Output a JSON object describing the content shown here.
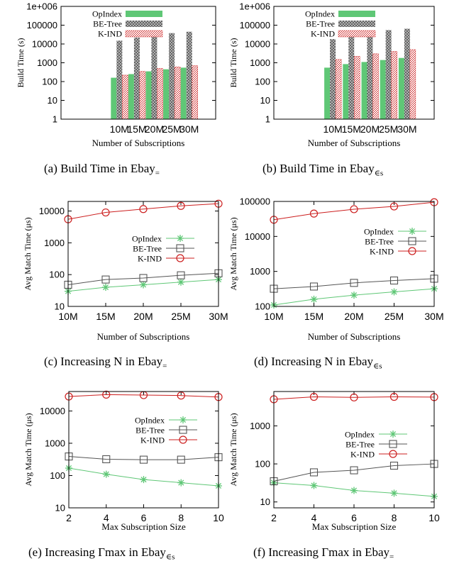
{
  "captions": [
    {
      "text": "(a) Build Time in Ebay",
      "sub": "="
    },
    {
      "text": "(b) Build Time in Ebay",
      "sub": "∈s"
    },
    {
      "text": "(c) Increasing N in Ebay",
      "sub": "="
    },
    {
      "text": "(d) Increasing N in Ebay",
      "sub": "∈s"
    },
    {
      "text": "(e) Increasing Γmax in Ebay",
      "sub": "∈s"
    },
    {
      "text": "(f) Increasing Γmax in Ebay",
      "sub": "="
    }
  ],
  "colors": {
    "opindex": "#5fc776",
    "betree": "#555555",
    "kind": "#cc1f1f",
    "kind_hatch": "#ffd6d6"
  },
  "chart_data": [
    {
      "type": "bar",
      "log": true,
      "categories": [
        "10M",
        "15M",
        "20M",
        "25M",
        "30M"
      ],
      "ylim": [
        1,
        1000000
      ],
      "yticks": [
        "1",
        "10",
        "100",
        "1000",
        "10000",
        "100000",
        "1e+006"
      ],
      "xlabel": "Number of Subscriptions",
      "ylabel": "Build Time (s)",
      "series": [
        {
          "name": "OpIndex",
          "values": [
            160,
            250,
            350,
            450,
            550
          ]
        },
        {
          "name": "BE-Tree",
          "values": [
            15000,
            22000,
            28000,
            38000,
            45000
          ]
        },
        {
          "name": "K-IND",
          "values": [
            220,
            350,
            500,
            600,
            700
          ]
        }
      ]
    },
    {
      "type": "bar",
      "log": true,
      "categories": [
        "10M",
        "15M",
        "20M",
        "25M",
        "30M"
      ],
      "ylim": [
        1,
        1000000
      ],
      "yticks": [
        "1",
        "10",
        "100",
        "1000",
        "10000",
        "100000",
        "1e+006"
      ],
      "xlabel": "Number of Subscriptions",
      "ylabel": "Build Time (s)",
      "series": [
        {
          "name": "OpIndex",
          "values": [
            550,
            850,
            1100,
            1400,
            1800
          ]
        },
        {
          "name": "BE-Tree",
          "values": [
            18000,
            28000,
            32000,
            55000,
            65000
          ]
        },
        {
          "name": "K-IND",
          "values": [
            1500,
            2200,
            3000,
            4000,
            5000
          ]
        }
      ]
    },
    {
      "type": "line",
      "log": true,
      "categories": [
        "10M",
        "15M",
        "20M",
        "25M",
        "30M"
      ],
      "ylim": [
        10,
        20000
      ],
      "yticks": [
        "10",
        "100",
        "1000",
        "10000"
      ],
      "xlabel": "Number of Subscriptions",
      "ylabel": "Avg Match Time (μs)",
      "series": [
        {
          "name": "OpIndex",
          "values": [
            30,
            40,
            48,
            58,
            70
          ]
        },
        {
          "name": "BE-Tree",
          "values": [
            48,
            70,
            78,
            95,
            110
          ]
        },
        {
          "name": "K-IND",
          "values": [
            5500,
            9000,
            11500,
            14500,
            17000
          ]
        }
      ]
    },
    {
      "type": "line",
      "log": true,
      "categories": [
        "10M",
        "15M",
        "20M",
        "25M",
        "30M"
      ],
      "ylim": [
        100,
        100000
      ],
      "yticks": [
        "100",
        "1000",
        "10000",
        "100000"
      ],
      "xlabel": "Number of Subscriptions",
      "ylabel": "Avg Match Time (μs)",
      "series": [
        {
          "name": "OpIndex",
          "values": [
            110,
            160,
            210,
            260,
            320
          ]
        },
        {
          "name": "BE-Tree",
          "values": [
            320,
            370,
            470,
            550,
            620
          ]
        },
        {
          "name": "K-IND",
          "values": [
            30000,
            45000,
            60000,
            72000,
            95000
          ]
        }
      ]
    },
    {
      "type": "line",
      "log": true,
      "categories": [
        "2",
        "4",
        "6",
        "8",
        "10"
      ],
      "ylim": [
        10,
        40000
      ],
      "yticks": [
        "10",
        "100",
        "1000",
        "10000"
      ],
      "xlabel": "Max Subscription Size",
      "ylabel": "Avg Match Time (μs)",
      "series": [
        {
          "name": "OpIndex",
          "values": [
            170,
            110,
            75,
            60,
            48
          ]
        },
        {
          "name": "BE-Tree",
          "values": [
            390,
            320,
            310,
            310,
            370
          ]
        },
        {
          "name": "K-IND",
          "values": [
            28000,
            32000,
            31000,
            30000,
            27000
          ]
        }
      ]
    },
    {
      "type": "line",
      "log": true,
      "categories": [
        "2",
        "4",
        "6",
        "8",
        "10"
      ],
      "ylim": [
        7,
        8000
      ],
      "yticks": [
        "10",
        "100",
        "1000"
      ],
      "xlabel": "Max Subscription Size",
      "ylabel": "Avg Match Time (μs)",
      "series": [
        {
          "name": "OpIndex",
          "values": [
            32,
            27,
            20,
            17,
            14
          ]
        },
        {
          "name": "BE-Tree",
          "values": [
            35,
            60,
            68,
            90,
            100
          ]
        },
        {
          "name": "K-IND",
          "values": [
            5000,
            5800,
            5600,
            5800,
            5700
          ]
        }
      ]
    }
  ]
}
